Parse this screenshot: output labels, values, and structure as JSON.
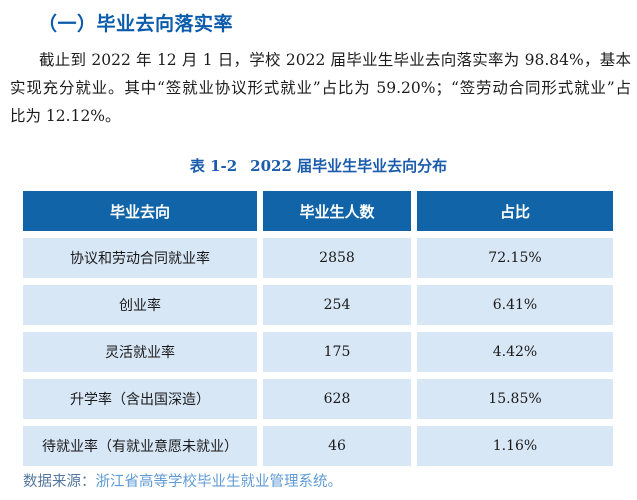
{
  "page": {
    "heading": "（一）毕业去向落实率",
    "paragraph": {
      "lines": [
        "截止到 2022 年 12 月 1 日，学校 2022 届毕业生毕业去向落实率为 98.84%，基本",
        "实现充分就业。其中“签就业协议形式就业”占比为 59.20%；“签劳动合同形式就业”占",
        "比为 12.12%。"
      ]
    },
    "table_caption": {
      "label": "表 1-2",
      "title": "2022 届毕业生毕业去向分布"
    },
    "table": {
      "headers": [
        "毕业去向",
        "毕业生人数",
        "占比"
      ],
      "rows": [
        {
          "category": "协议和劳动合同就业率",
          "count": "2858",
          "percent": "72.15%"
        },
        {
          "category": "创业率",
          "count": "254",
          "percent": "6.41%"
        },
        {
          "category": "灵活就业率",
          "count": "175",
          "percent": "4.42%"
        },
        {
          "category": "升学率（含出国深造）",
          "count": "628",
          "percent": "15.85%"
        },
        {
          "category": "待就业率（有就业意愿未就业）",
          "count": "46",
          "percent": "1.16%"
        }
      ]
    },
    "source": {
      "label": "数据来源：",
      "text": "浙江省高等学校毕业生就业管理系统。"
    },
    "colors": {
      "heading_text": "#0b5bad",
      "caption_text": "#1b5cad",
      "header_bg": "#1164a8",
      "row_bg": "#d8e7f6",
      "source_label": "#54779f",
      "source_text": "#5f9bd5"
    }
  }
}
